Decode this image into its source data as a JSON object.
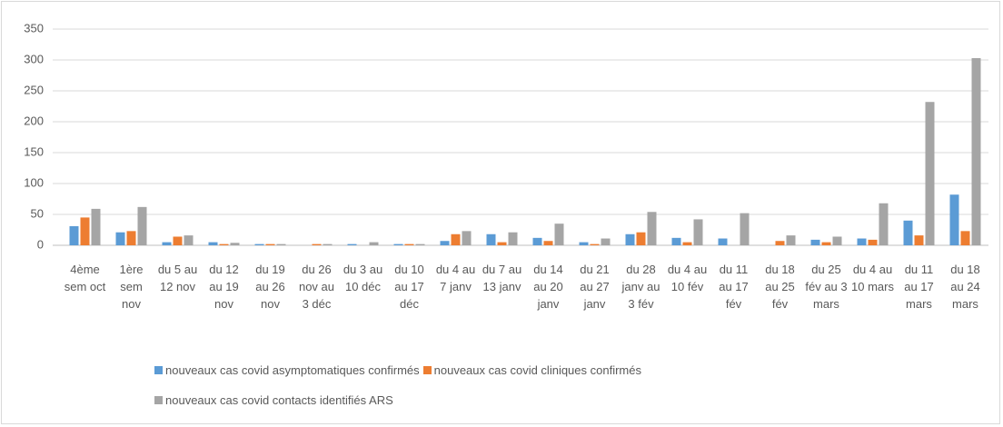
{
  "chart_data": {
    "type": "bar",
    "categories": [
      "4ème sem oct",
      "1ère sem nov",
      "du 5 au 12 nov",
      "du 12 au 19 nov",
      "du 19 au 26 nov",
      "du 26 nov au 3 déc",
      "du 3 au 10 déc",
      "du 10 au 17 déc",
      "du 4 au 7 janv",
      "du 7 au 13 janv",
      "du 14 au 20 janv",
      "du 21 au 27 janv",
      "du 28 janv au 3 fév",
      "du 4 au 10 fév",
      "du 11 au 17 fév",
      "du 18 au 25 fév",
      "du 25 fév au 3 mars",
      "du 4 au 10 mars",
      "du 11 au 17 mars",
      "du 18 au 24 mars"
    ],
    "series": [
      {
        "name": "nouveaux cas covid asymptomatiques confirmés",
        "color": "#5b9bd5",
        "values": [
          31,
          21,
          5,
          5,
          2,
          0,
          2,
          2,
          7,
          18,
          12,
          5,
          18,
          12,
          11,
          0,
          9,
          11,
          40,
          82
        ]
      },
      {
        "name": "nouveaux cas covid cliniques confirmés",
        "color": "#ed7d31",
        "values": [
          45,
          23,
          14,
          2,
          2,
          2,
          0,
          2,
          18,
          5,
          7,
          2,
          21,
          5,
          0,
          7,
          5,
          9,
          16,
          23
        ]
      },
      {
        "name": "nouveaux cas covid contacts identifiés ARS",
        "color": "#a5a5a5",
        "values": [
          59,
          62,
          16,
          4,
          2,
          2,
          5,
          2,
          23,
          21,
          35,
          11,
          54,
          42,
          52,
          16,
          14,
          68,
          232,
          303
        ]
      }
    ],
    "ylim": [
      0,
      350
    ],
    "yticks": [
      0,
      50,
      100,
      150,
      200,
      250,
      300,
      350
    ],
    "grid": true
  }
}
